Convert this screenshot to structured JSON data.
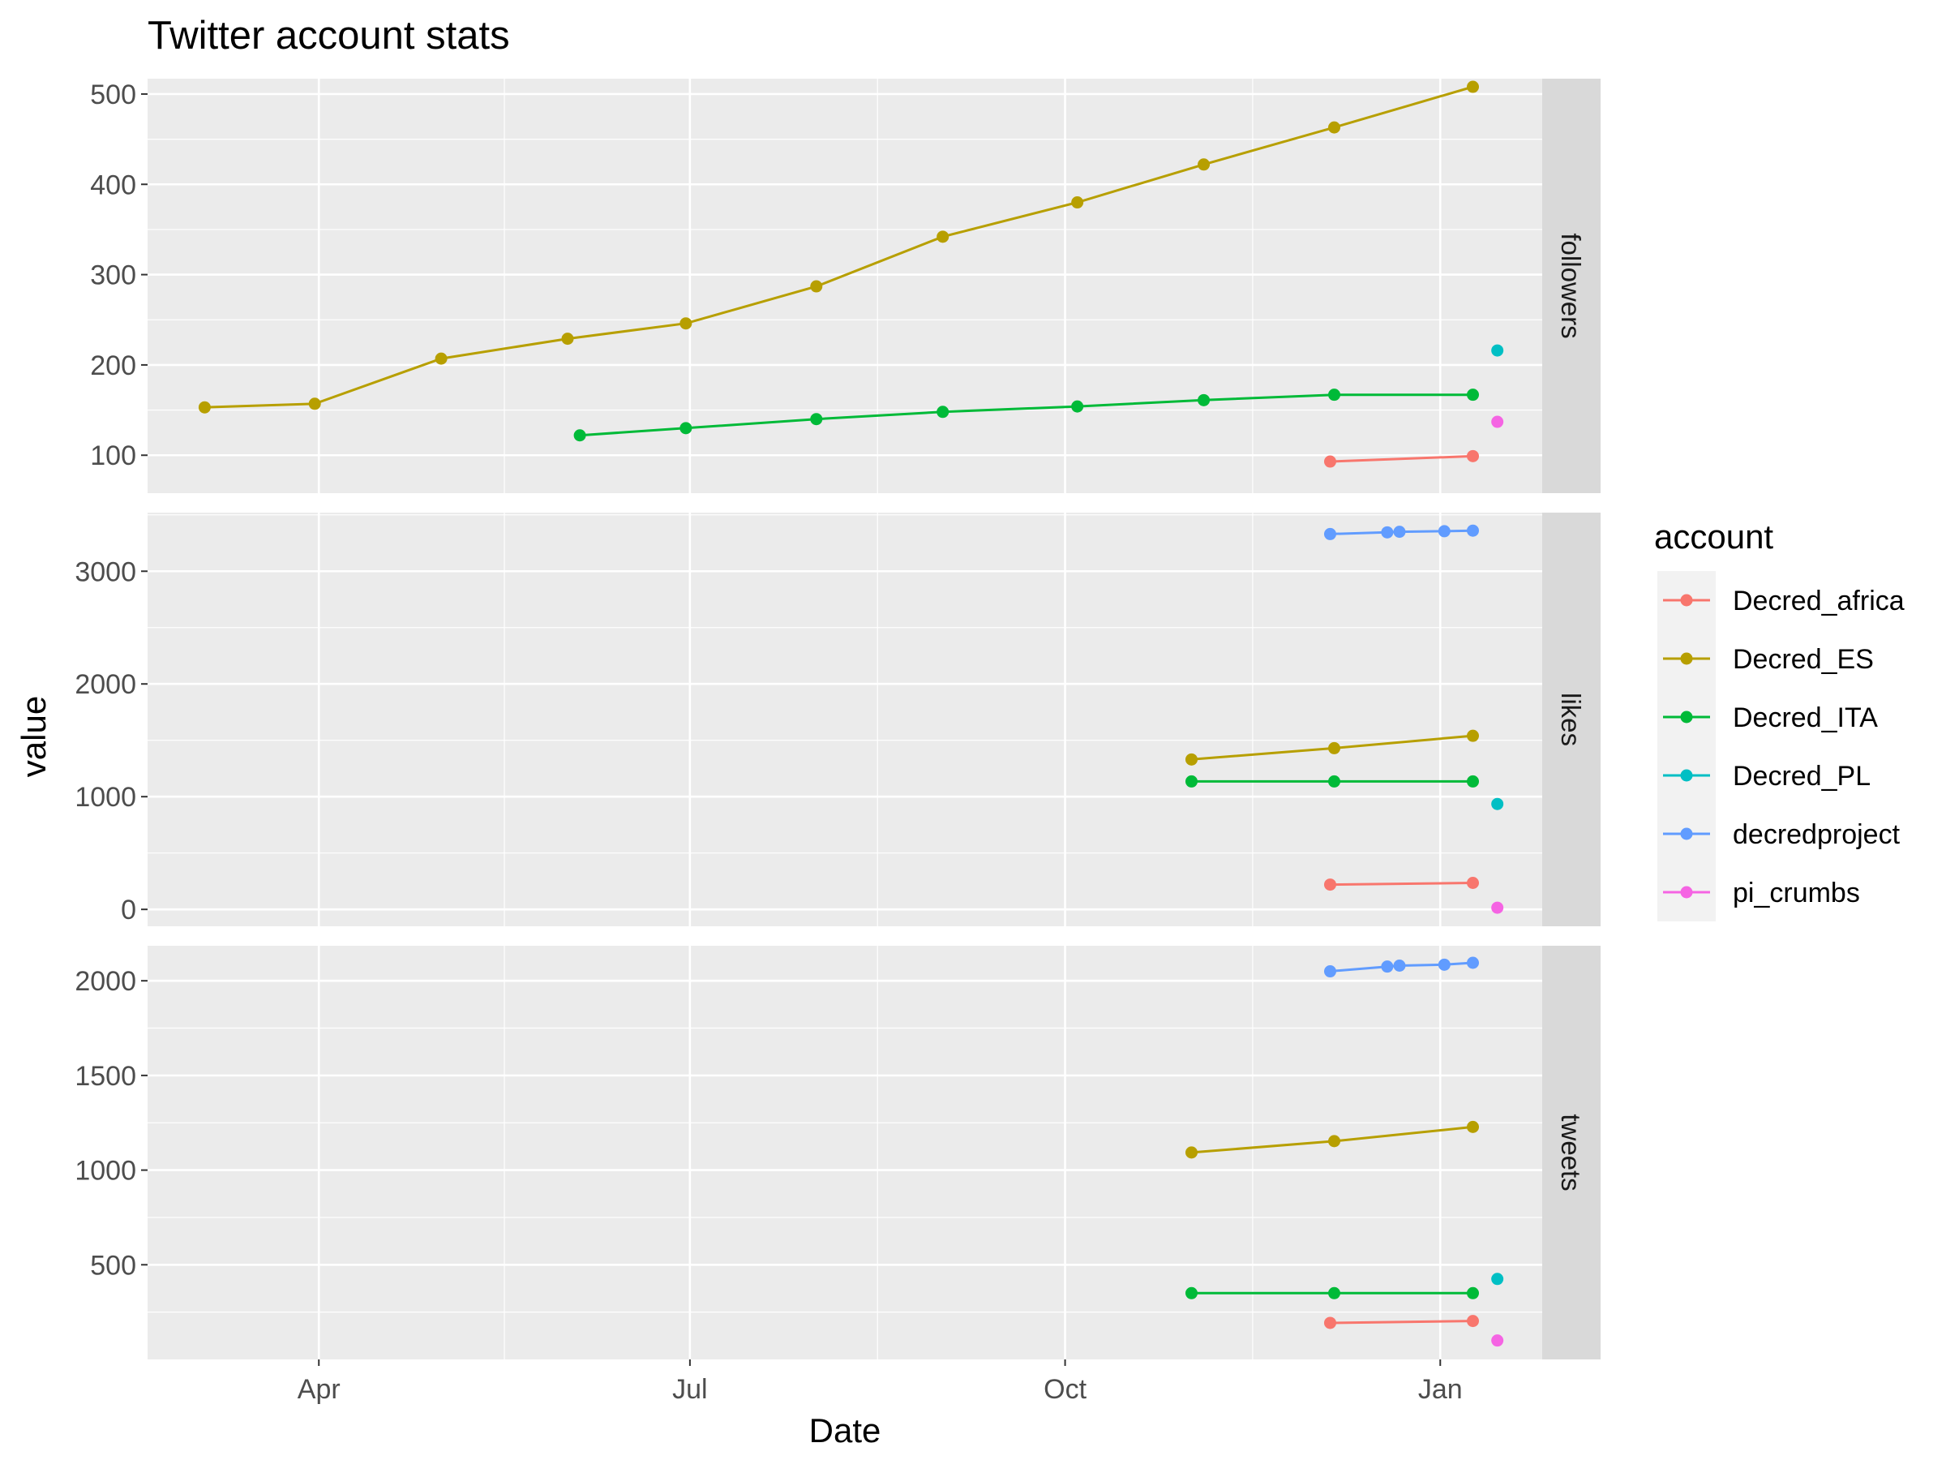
{
  "chart_data": {
    "type": "line",
    "title": "Twitter account stats",
    "xlabel": "Date",
    "ylabel": "value",
    "x_ticks": [
      {
        "date": "2018-04-01",
        "label": "Apr"
      },
      {
        "date": "2018-07-01",
        "label": "Jul"
      },
      {
        "date": "2018-10-01",
        "label": "Oct"
      },
      {
        "date": "2019-01-01",
        "label": "Jan"
      }
    ],
    "xlim": [
      "2018-02-18",
      "2019-01-26"
    ],
    "legend": {
      "title": "account",
      "position": "right"
    },
    "grid": true,
    "series_colors": {
      "Decred_africa": "#F8766D",
      "Decred_ES": "#B79F00",
      "Decred_ITA": "#00BA38",
      "Decred_PL": "#00BFC4",
      "decredproject": "#619CFF",
      "pi_crumbs": "#F564E3"
    },
    "accounts": [
      "Decred_africa",
      "Decred_ES",
      "Decred_ITA",
      "Decred_PL",
      "decredproject",
      "pi_crumbs"
    ],
    "panels": [
      {
        "name": "followers",
        "ylim": [
          58,
          517
        ],
        "yticks": [
          100,
          200,
          300,
          400,
          500
        ],
        "series": [
          {
            "name": "Decred_ES",
            "points": [
              [
                "2018-03-04",
                153
              ],
              [
                "2018-03-31",
                157
              ],
              [
                "2018-05-01",
                207
              ],
              [
                "2018-06-01",
                229
              ],
              [
                "2018-06-30",
                246
              ],
              [
                "2018-08-01",
                287
              ],
              [
                "2018-09-01",
                342
              ],
              [
                "2018-10-04",
                380
              ],
              [
                "2018-11-04",
                422
              ],
              [
                "2018-12-06",
                463
              ],
              [
                "2019-01-09",
                508
              ]
            ]
          },
          {
            "name": "Decred_ITA",
            "points": [
              [
                "2018-06-04",
                122
              ],
              [
                "2018-06-30",
                130
              ],
              [
                "2018-08-01",
                140
              ],
              [
                "2018-09-01",
                148
              ],
              [
                "2018-10-04",
                154
              ],
              [
                "2018-11-04",
                161
              ],
              [
                "2018-12-06",
                167
              ],
              [
                "2019-01-09",
                167
              ]
            ]
          },
          {
            "name": "Decred_africa",
            "points": [
              [
                "2018-12-05",
                93
              ],
              [
                "2019-01-09",
                99
              ]
            ]
          },
          {
            "name": "Decred_PL",
            "points": [
              [
                "2019-01-15",
                216
              ]
            ]
          },
          {
            "name": "pi_crumbs",
            "points": [
              [
                "2019-01-15",
                137
              ]
            ]
          }
        ]
      },
      {
        "name": "likes",
        "ylim": [
          -150,
          3520
        ],
        "yticks": [
          0,
          1000,
          2000,
          3000
        ],
        "series": [
          {
            "name": "decredproject",
            "points": [
              [
                "2018-12-05",
                3330
              ],
              [
                "2018-12-19",
                3345
              ],
              [
                "2018-12-22",
                3350
              ],
              [
                "2019-01-02",
                3355
              ],
              [
                "2019-01-09",
                3360
              ]
            ]
          },
          {
            "name": "Decred_ES",
            "points": [
              [
                "2018-11-01",
                1330
              ],
              [
                "2018-12-06",
                1430
              ],
              [
                "2019-01-09",
                1540
              ]
            ]
          },
          {
            "name": "Decred_ITA",
            "points": [
              [
                "2018-11-01",
                1135
              ],
              [
                "2018-12-06",
                1135
              ],
              [
                "2019-01-09",
                1135
              ]
            ]
          },
          {
            "name": "Decred_africa",
            "points": [
              [
                "2018-12-05",
                220
              ],
              [
                "2019-01-09",
                235
              ]
            ]
          },
          {
            "name": "Decred_PL",
            "points": [
              [
                "2019-01-15",
                935
              ]
            ]
          },
          {
            "name": "pi_crumbs",
            "points": [
              [
                "2019-01-15",
                15
              ]
            ]
          }
        ]
      },
      {
        "name": "tweets",
        "ylim": [
          0,
          2185
        ],
        "yticks": [
          500,
          1000,
          1500,
          2000
        ],
        "series": [
          {
            "name": "decredproject",
            "points": [
              [
                "2018-12-05",
                2050
              ],
              [
                "2018-12-19",
                2075
              ],
              [
                "2018-12-22",
                2080
              ],
              [
                "2019-01-02",
                2085
              ],
              [
                "2019-01-09",
                2095
              ]
            ]
          },
          {
            "name": "Decred_ES",
            "points": [
              [
                "2018-11-01",
                1093
              ],
              [
                "2018-12-06",
                1153
              ],
              [
                "2019-01-09",
                1228
              ]
            ]
          },
          {
            "name": "Decred_ITA",
            "points": [
              [
                "2018-11-01",
                350
              ],
              [
                "2018-12-06",
                350
              ],
              [
                "2019-01-09",
                350
              ]
            ]
          },
          {
            "name": "Decred_africa",
            "points": [
              [
                "2018-12-05",
                193
              ],
              [
                "2019-01-09",
                203
              ]
            ]
          },
          {
            "name": "Decred_PL",
            "points": [
              [
                "2019-01-15",
                425
              ]
            ]
          },
          {
            "name": "pi_crumbs",
            "points": [
              [
                "2019-01-15",
                100
              ]
            ]
          }
        ]
      }
    ]
  }
}
